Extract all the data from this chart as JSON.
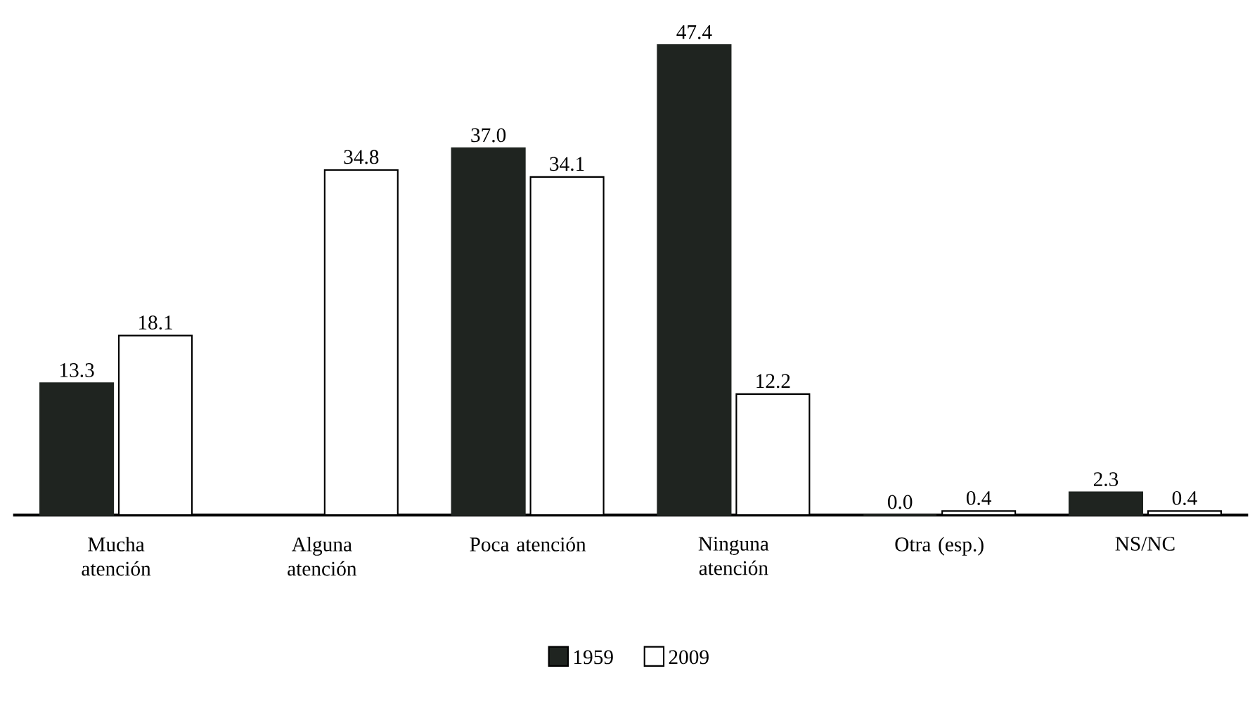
{
  "chart_data": {
    "type": "bar",
    "categories": [
      "Mucha atención",
      "Alguna atención",
      "Poca atención",
      "Ninguna atención",
      "Otra (esp.)",
      "NS/NC"
    ],
    "series": [
      {
        "name": "1959",
        "color": "#1f2420",
        "values": [
          13.3,
          null,
          37.0,
          47.4,
          0.0,
          2.3
        ],
        "value_labels": [
          "13.3",
          null,
          "37.0",
          "47.4",
          "0.0",
          "2.3"
        ]
      },
      {
        "name": "2009",
        "color": "#ffffff",
        "values": [
          18.1,
          34.8,
          34.1,
          12.2,
          0.4,
          0.4
        ],
        "value_labels": [
          "18.1",
          "34.8",
          "34.1",
          "12.2",
          "0.4",
          "0.4"
        ]
      }
    ],
    "legend": "bottom"
  }
}
